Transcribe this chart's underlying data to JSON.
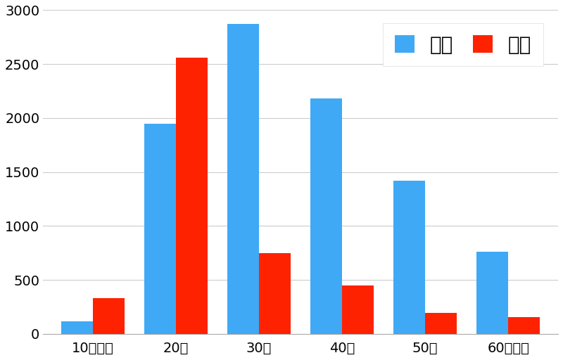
{
  "categories": [
    "10代以下",
    "20代",
    "30代",
    "40代",
    "50代",
    "60代以上"
  ],
  "male_values": [
    120,
    1950,
    2870,
    2180,
    1420,
    760
  ],
  "female_values": [
    330,
    2560,
    750,
    450,
    195,
    155
  ],
  "male_color": "#3FA9F5",
  "female_color": "#FF2200",
  "legend_male": "男性",
  "legend_female": "女性",
  "ylim": [
    0,
    3000
  ],
  "yticks": [
    0,
    500,
    1000,
    1500,
    2000,
    2500,
    3000
  ],
  "background_color": "#FFFFFF",
  "grid_color": "#CCCCCC",
  "bar_width": 0.38,
  "legend_fontsize": 20,
  "tick_fontsize": 14
}
